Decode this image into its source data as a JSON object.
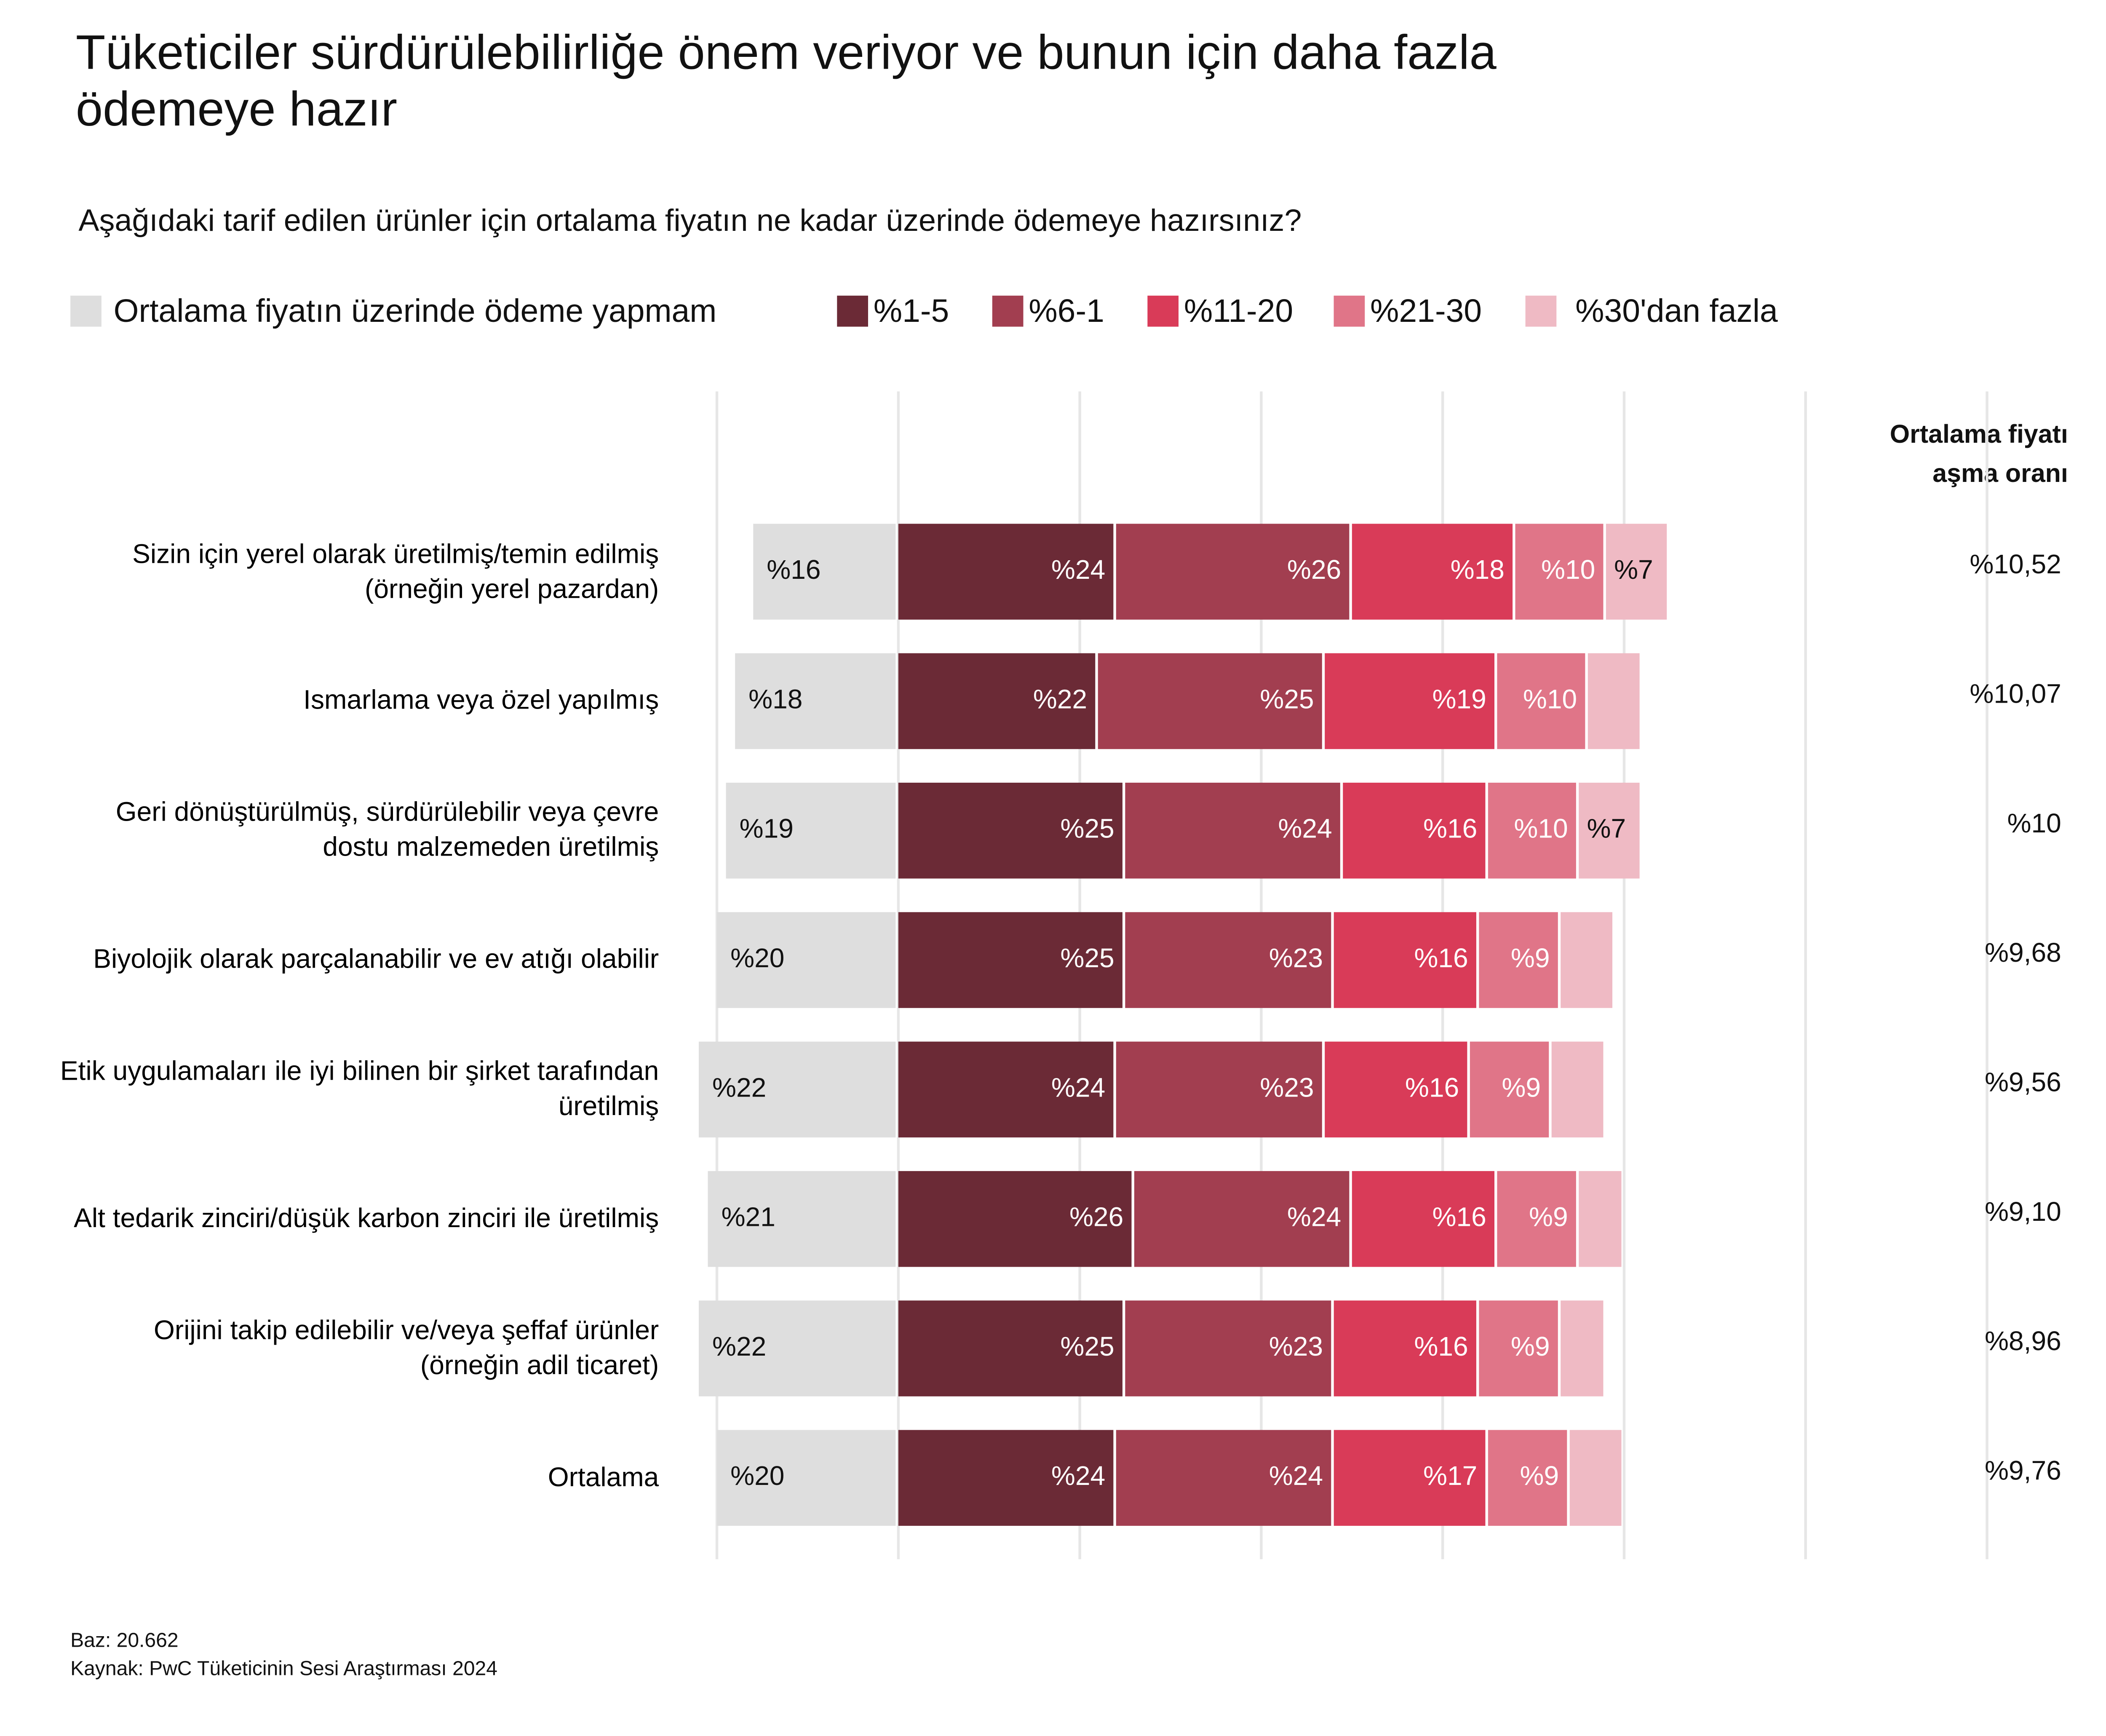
{
  "chart_data": {
    "type": "diverging_bar",
    "title": "Tüketiciler sürdürülebilirliğe önem veriyor ve bunun için daha fazla\nödemeye hazır",
    "subtitle": "Aşağıdaki tarif edilen ürünler için ortalama fiyatın ne kadar üzerinde ödemeye hazırsınız?",
    "categories": [
      "Sizin için yerel olarak üretilmiş/temin edilmiş\n(örneğin yerel pazardan)",
      "Ismarlama veya özel yapılmış",
      "Geri dönüştürülmüş, sürdürülebilir veya\nçevre dostu malzemeden üretilmiş",
      "Biyolojik olarak parçalanabilir\nve ev atığı olabilir",
      "Etik uygulamaları ile iyi bilinen bir\nşirket tarafından üretilmiş",
      "Alt tedarik zinciri/düşük\nkarbon zinciri ile üretilmiş",
      "Orijini takip edilebilir ve/veya\nşeffaf ürünler (örneğin adil ticaret)",
      "Ortalama"
    ],
    "diverging": true,
    "series": [
      {
        "name": "Ortalama fiyatın üzerinde ödeme yapmam",
        "color": "#dedede",
        "values": [
          16,
          18,
          19,
          20,
          22,
          21,
          22,
          20
        ],
        "value_labels": [
          "%16",
          "%18",
          "%19",
          "%20",
          "%22",
          "%21",
          "%22",
          "%20"
        ]
      },
      {
        "name": "%1-5",
        "color": "#6b2a36",
        "values": [
          24,
          22,
          25,
          25,
          24,
          26,
          25,
          24
        ],
        "value_labels": [
          "%24",
          "%22",
          "%25",
          "%25",
          "%24",
          "%26",
          "%25",
          "%24"
        ]
      },
      {
        "name": "%6-1",
        "color": "#a23e50",
        "values": [
          26,
          25,
          24,
          23,
          23,
          24,
          23,
          24
        ],
        "value_labels": [
          "%26",
          "%25",
          "%24",
          "%23",
          "%23",
          "%24",
          "%23",
          "%24"
        ]
      },
      {
        "name": "%11-20",
        "color": "#d93b58",
        "values": [
          18,
          19,
          16,
          16,
          16,
          16,
          16,
          17
        ],
        "value_labels": [
          "%18",
          "%19",
          "%16",
          "%16",
          "%16",
          "%16",
          "%16",
          "%17"
        ]
      },
      {
        "name": "%21-30",
        "color": "#e07588",
        "values": [
          10,
          10,
          10,
          9,
          9,
          9,
          9,
          9
        ],
        "value_labels": [
          "%10",
          "%10",
          "%10",
          "%9",
          "%9",
          "%9",
          "%9",
          "%9"
        ]
      },
      {
        "name": "%30'dan fazla",
        "color": "#efbac4",
        "values": [
          7,
          6,
          7,
          6,
          6,
          5,
          5,
          6
        ],
        "value_labels": [
          "%7",
          null,
          "%7",
          null,
          null,
          null,
          null,
          null
        ]
      }
    ],
    "xlim": [
      -20,
      120
    ],
    "xticks": [
      -20,
      0,
      20,
      40,
      60,
      80,
      100,
      120
    ],
    "grid": true,
    "premium": {
      "title": "Ortalama fiyatı\naşma oranı",
      "values": [
        10.52,
        10.07,
        10,
        9.68,
        9.56,
        9.1,
        8.96,
        9.76
      ],
      "value_labels": [
        "%10,52",
        "%10,07",
        "%10",
        "%9,68",
        "%9,56",
        "%9,10",
        "%8,96",
        "%9,76"
      ]
    },
    "notes": [
      "Baz: 20.662",
      "Kaynak: PwC Tüketicinin Sesi Araştırması 2024"
    ]
  }
}
